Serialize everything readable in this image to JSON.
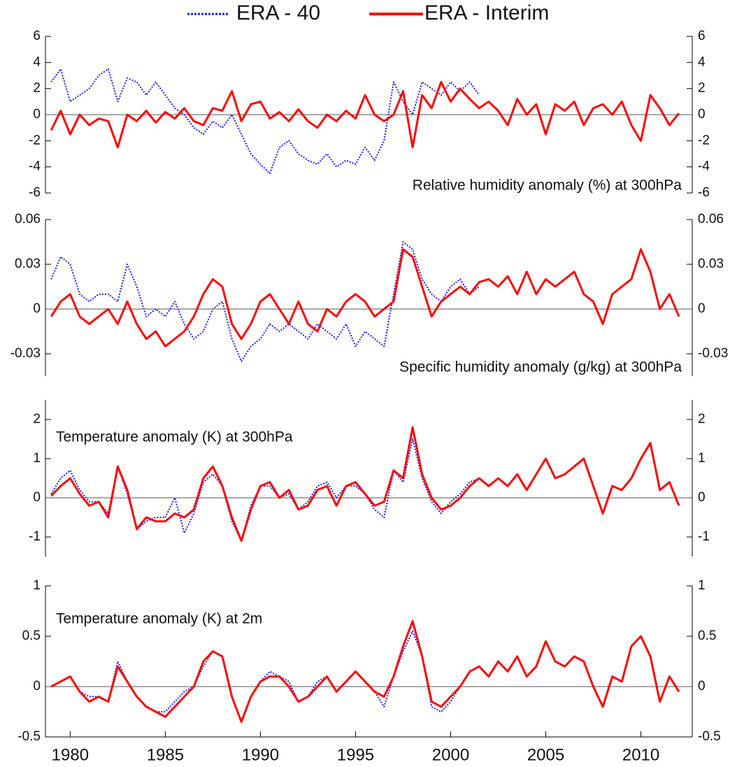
{
  "chart_data": [
    {
      "type": "line",
      "title": "Relative humidity anomaly (%) at 300hPa",
      "x": [
        1979,
        1979.5,
        1980,
        1980.5,
        1981,
        1981.5,
        1982,
        1982.5,
        1983,
        1983.5,
        1984,
        1984.5,
        1985,
        1985.5,
        1986,
        1986.5,
        1987,
        1987.5,
        1988,
        1988.5,
        1989,
        1989.5,
        1990,
        1990.5,
        1991,
        1991.5,
        1992,
        1992.5,
        1993,
        1993.5,
        1994,
        1994.5,
        1995,
        1995.5,
        1996,
        1996.5,
        1997,
        1997.5,
        1998,
        1998.5,
        1999,
        1999.5,
        2000,
        2000.5,
        2001,
        2001.5,
        2002,
        2002.5,
        2003,
        2003.5,
        2004,
        2004.5,
        2005,
        2005.5,
        2006,
        2006.5,
        2007,
        2007.5,
        2008,
        2008.5,
        2009,
        2009.5,
        2010,
        2010.5,
        2011,
        2011.5,
        2012
      ],
      "xlim": [
        1978.7,
        2012.7
      ],
      "ylim": [
        -6,
        6
      ],
      "yticks": [
        -6,
        -4,
        -2,
        0,
        2,
        4,
        6
      ],
      "series": [
        {
          "name": "ERA - 40",
          "color": "#1a1aff",
          "dash": "dotted",
          "values": [
            2.5,
            3.5,
            1,
            1.5,
            2,
            3,
            3.5,
            1,
            2.8,
            2.5,
            1.5,
            2.5,
            1.5,
            0.5,
            0,
            -1,
            -1.5,
            -0.5,
            -1,
            0,
            -1.5,
            -3,
            -3.8,
            -4.5,
            -2.5,
            -2,
            -3,
            -3.5,
            -3.8,
            -3,
            -4,
            -3.5,
            -3.8,
            -2.5,
            -3.5,
            -2,
            2.5,
            1,
            0,
            2.5,
            2,
            1.5,
            2.5,
            1.8,
            2.5,
            1.5,
            null,
            null,
            null,
            null,
            null,
            null,
            null,
            null,
            null,
            null,
            null,
            null,
            null,
            null,
            null,
            null,
            null,
            null,
            null,
            null,
            null
          ]
        },
        {
          "name": "ERA - Interim",
          "color": "#ff0000",
          "dash": "solid",
          "values": [
            -1.2,
            0.3,
            -1.5,
            0,
            -0.8,
            -0.3,
            -0.5,
            -2.5,
            0,
            -0.5,
            0.3,
            -0.6,
            0.2,
            -0.3,
            0.5,
            -0.5,
            -0.8,
            0.5,
            0.3,
            1.8,
            -0.5,
            0.8,
            1,
            -0.3,
            0.2,
            -0.5,
            0.4,
            -0.5,
            -1,
            0,
            -0.5,
            0.3,
            -0.3,
            1.5,
            0,
            -0.5,
            0,
            1.8,
            -2.5,
            1.5,
            0.5,
            2.5,
            1,
            2,
            1.2,
            0.5,
            1,
            0.3,
            -0.8,
            1.2,
            0,
            0.8,
            -1.5,
            0.8,
            0.3,
            1,
            -0.8,
            0.5,
            0.8,
            0,
            1,
            -0.8,
            -2,
            1.5,
            0.5,
            -0.8,
            0.1
          ]
        }
      ]
    },
    {
      "type": "line",
      "title": "Specific humidity anomaly (g/kg) at 300hPa",
      "x": [
        1979,
        1979.5,
        1980,
        1980.5,
        1981,
        1981.5,
        1982,
        1982.5,
        1983,
        1983.5,
        1984,
        1984.5,
        1985,
        1985.5,
        1986,
        1986.5,
        1987,
        1987.5,
        1988,
        1988.5,
        1989,
        1989.5,
        1990,
        1990.5,
        1991,
        1991.5,
        1992,
        1992.5,
        1993,
        1993.5,
        1994,
        1994.5,
        1995,
        1995.5,
        1996,
        1996.5,
        1997,
        1997.5,
        1998,
        1998.5,
        1999,
        1999.5,
        2000,
        2000.5,
        2001,
        2001.5,
        2002,
        2002.5,
        2003,
        2003.5,
        2004,
        2004.5,
        2005,
        2005.5,
        2006,
        2006.5,
        2007,
        2007.5,
        2008,
        2008.5,
        2009,
        2009.5,
        2010,
        2010.5,
        2011,
        2011.5,
        2012
      ],
      "xlim": [
        1978.7,
        2012.7
      ],
      "ylim": [
        -0.045,
        0.06
      ],
      "yticks": [
        -0.03,
        0,
        0.03,
        0.06
      ],
      "series": [
        {
          "color": "#1a1aff",
          "dash": "dotted",
          "values": [
            0.02,
            0.035,
            0.03,
            0.01,
            0.005,
            0.01,
            0.01,
            0.005,
            0.03,
            0.015,
            -0.005,
            0,
            -0.005,
            0.005,
            -0.01,
            -0.02,
            -0.015,
            0,
            0.005,
            -0.02,
            -0.035,
            -0.025,
            -0.02,
            -0.01,
            -0.015,
            -0.01,
            -0.015,
            -0.02,
            -0.01,
            -0.015,
            -0.02,
            -0.01,
            -0.025,
            -0.015,
            -0.02,
            -0.025,
            0.01,
            0.045,
            0.04,
            0.02,
            0.01,
            0.005,
            0.015,
            0.02,
            0.01,
            0.015,
            null,
            null,
            null,
            null,
            null,
            null,
            null,
            null,
            null,
            null,
            null,
            null,
            null,
            null,
            null,
            null,
            null,
            null,
            null,
            null,
            null
          ]
        },
        {
          "color": "#ff0000",
          "dash": "solid",
          "values": [
            -0.005,
            0.005,
            0.01,
            -0.005,
            -0.01,
            -0.005,
            0,
            -0.01,
            0.005,
            -0.01,
            -0.02,
            -0.015,
            -0.025,
            -0.02,
            -0.015,
            -0.005,
            0.01,
            0.02,
            0.015,
            -0.01,
            -0.02,
            -0.01,
            0.005,
            0.01,
            0,
            -0.01,
            0.005,
            -0.01,
            -0.015,
            0,
            -0.005,
            0.005,
            0.01,
            0.005,
            -0.005,
            0,
            0.005,
            0.04,
            0.035,
            0.015,
            -0.005,
            0.005,
            0.01,
            0.015,
            0.01,
            0.018,
            0.02,
            0.015,
            0.022,
            0.01,
            0.025,
            0.01,
            0.02,
            0.015,
            0.02,
            0.025,
            0.01,
            0.005,
            -0.01,
            0.01,
            0.015,
            0.02,
            0.04,
            0.025,
            0,
            0.01,
            -0.005
          ]
        }
      ]
    },
    {
      "type": "line",
      "title": "Temperature anomaly (K) at 300hPa",
      "x": [
        1979,
        1979.5,
        1980,
        1980.5,
        1981,
        1981.5,
        1982,
        1982.5,
        1983,
        1983.5,
        1984,
        1984.5,
        1985,
        1985.5,
        1986,
        1986.5,
        1987,
        1987.5,
        1988,
        1988.5,
        1989,
        1989.5,
        1990,
        1990.5,
        1991,
        1991.5,
        1992,
        1992.5,
        1993,
        1993.5,
        1994,
        1994.5,
        1995,
        1995.5,
        1996,
        1996.5,
        1997,
        1997.5,
        1998,
        1998.5,
        1999,
        1999.5,
        2000,
        2000.5,
        2001,
        2001.5,
        2002,
        2002.5,
        2003,
        2003.5,
        2004,
        2004.5,
        2005,
        2005.5,
        2006,
        2006.5,
        2007,
        2007.5,
        2008,
        2008.5,
        2009,
        2009.5,
        2010,
        2010.5,
        2011,
        2011.5,
        2012
      ],
      "xlim": [
        1978.7,
        2012.7
      ],
      "ylim": [
        -1.5,
        2.5
      ],
      "yticks": [
        -1,
        0,
        1,
        2
      ],
      "series": [
        {
          "color": "#1a1aff",
          "dash": "dotted",
          "values": [
            0.1,
            0.5,
            0.7,
            0.2,
            -0.1,
            -0.1,
            -0.4,
            0.8,
            0.1,
            -0.8,
            -0.6,
            -0.5,
            -0.5,
            0,
            -0.9,
            -0.4,
            0.4,
            0.6,
            0.3,
            -0.6,
            -1.1,
            -0.2,
            0.3,
            0.3,
            0,
            0.1,
            -0.3,
            -0.1,
            0.3,
            0.4,
            0,
            0.3,
            0.3,
            0.1,
            -0.3,
            -0.5,
            0.7,
            0.4,
            1.5,
            0.5,
            -0.1,
            -0.4,
            -0.1,
            0.1,
            0.4,
            0.5,
            null,
            null,
            null,
            null,
            null,
            null,
            null,
            null,
            null,
            null,
            null,
            null,
            null,
            null,
            null,
            null,
            null,
            null,
            null,
            null,
            null
          ]
        },
        {
          "color": "#ff0000",
          "dash": "solid",
          "values": [
            0.05,
            0.3,
            0.5,
            0.1,
            -0.2,
            -0.1,
            -0.5,
            0.8,
            0.2,
            -0.8,
            -0.5,
            -0.6,
            -0.6,
            -0.4,
            -0.5,
            -0.3,
            0.5,
            0.8,
            0.3,
            -0.5,
            -1.1,
            -0.3,
            0.3,
            0.4,
            0,
            0.2,
            -0.3,
            -0.2,
            0.2,
            0.3,
            -0.2,
            0.3,
            0.4,
            0.1,
            -0.2,
            -0.1,
            0.7,
            0.5,
            1.8,
            0.6,
            0,
            -0.3,
            -0.2,
            0,
            0.3,
            0.5,
            0.3,
            0.5,
            0.3,
            0.6,
            0.2,
            0.6,
            1,
            0.5,
            0.6,
            0.8,
            1,
            0.3,
            -0.4,
            0.3,
            0.2,
            0.5,
            1,
            1.4,
            0.2,
            0.4,
            -0.2
          ]
        }
      ]
    },
    {
      "type": "line",
      "title": "Temperature anomaly (K) at 2m",
      "x": [
        1979,
        1979.5,
        1980,
        1980.5,
        1981,
        1981.5,
        1982,
        1982.5,
        1983,
        1983.5,
        1984,
        1984.5,
        1985,
        1985.5,
        1986,
        1986.5,
        1987,
        1987.5,
        1988,
        1988.5,
        1989,
        1989.5,
        1990,
        1990.5,
        1991,
        1991.5,
        1992,
        1992.5,
        1993,
        1993.5,
        1994,
        1994.5,
        1995,
        1995.5,
        1996,
        1996.5,
        1997,
        1997.5,
        1998,
        1998.5,
        1999,
        1999.5,
        2000,
        2000.5,
        2001,
        2001.5,
        2002,
        2002.5,
        2003,
        2003.5,
        2004,
        2004.5,
        2005,
        2005.5,
        2006,
        2006.5,
        2007,
        2007.5,
        2008,
        2008.5,
        2009,
        2009.5,
        2010,
        2010.5,
        2011,
        2011.5,
        2012
      ],
      "xlim": [
        1978.7,
        2012.7
      ],
      "ylim": [
        -0.5,
        1
      ],
      "yticks": [
        -0.5,
        0,
        0.5,
        1
      ],
      "xticks": [
        1980,
        1985,
        1990,
        1995,
        2000,
        2005,
        2010
      ],
      "series": [
        {
          "color": "#1a1aff",
          "dash": "dotted",
          "values": [
            0,
            0.05,
            0.1,
            -0.05,
            -0.1,
            -0.1,
            -0.15,
            0.25,
            0.05,
            -0.1,
            -0.2,
            -0.25,
            -0.25,
            -0.15,
            -0.05,
            0,
            0.2,
            0.35,
            0.3,
            -0.1,
            -0.35,
            -0.1,
            0.05,
            0.15,
            0.1,
            0.05,
            -0.15,
            -0.1,
            0.05,
            0.1,
            -0.05,
            0.05,
            0.15,
            0.05,
            -0.05,
            -0.2,
            0.1,
            0.35,
            0.55,
            0.3,
            -0.2,
            -0.25,
            -0.15,
            0,
            0.15,
            0.2,
            null,
            null,
            null,
            null,
            null,
            null,
            null,
            null,
            null,
            null,
            null,
            null,
            null,
            null,
            null,
            null,
            null,
            null,
            null,
            null,
            null
          ]
        },
        {
          "color": "#ff0000",
          "dash": "solid",
          "values": [
            0,
            0.05,
            0.1,
            -0.05,
            -0.15,
            -0.1,
            -0.15,
            0.2,
            0.05,
            -0.1,
            -0.2,
            -0.25,
            -0.3,
            -0.2,
            -0.1,
            0,
            0.25,
            0.35,
            0.3,
            -0.1,
            -0.35,
            -0.1,
            0.05,
            0.1,
            0.1,
            0,
            -0.15,
            -0.1,
            0,
            0.1,
            -0.05,
            0.05,
            0.15,
            0.05,
            -0.05,
            -0.1,
            0.1,
            0.4,
            0.65,
            0.3,
            -0.15,
            -0.2,
            -0.1,
            0,
            0.15,
            0.2,
            0.1,
            0.25,
            0.15,
            0.3,
            0.1,
            0.2,
            0.45,
            0.25,
            0.2,
            0.3,
            0.25,
            0,
            -0.2,
            0.1,
            0.05,
            0.4,
            0.5,
            0.3,
            -0.15,
            0.1,
            -0.05
          ]
        }
      ]
    }
  ]
}
